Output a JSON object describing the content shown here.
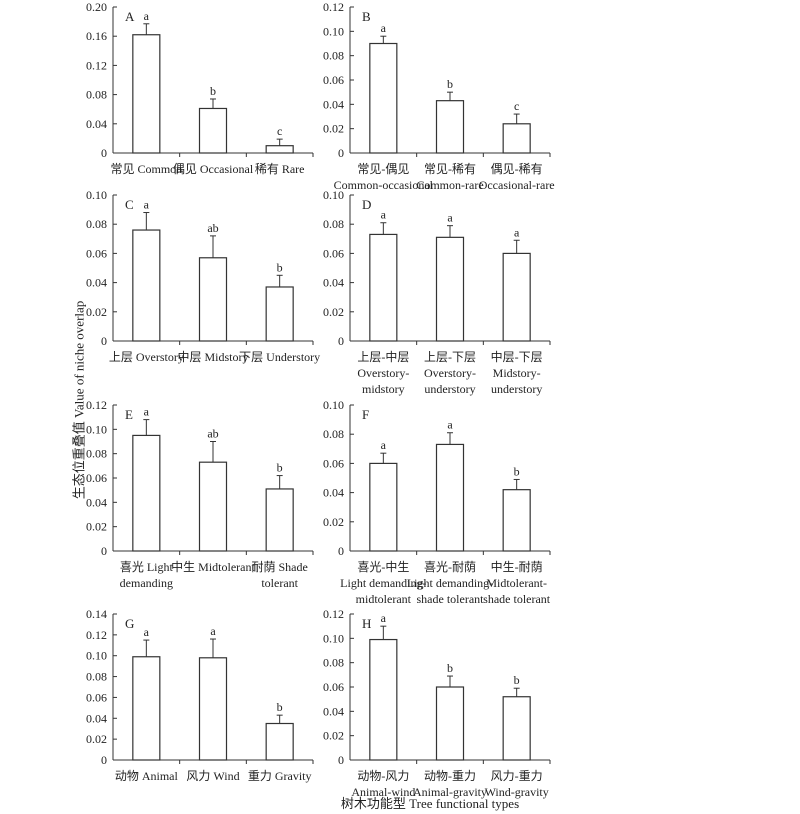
{
  "ylabel": "生态位重叠值 Value of niche overlap",
  "xlabel": "树木功能型 Tree functional types",
  "chart_data": [
    {
      "type": "bar",
      "panel": "A",
      "ylim": [
        0,
        0.2
      ],
      "ticks": [
        "0",
        "0.04",
        "0.08",
        "0.12",
        "0.16",
        "0.20"
      ],
      "categories": [
        [
          "常见 Common"
        ],
        [
          "偶见 Occasional"
        ],
        [
          "稀有 Rare"
        ]
      ],
      "values": [
        0.162,
        0.061,
        0.01
      ],
      "errors": [
        0.015,
        0.013,
        0.009
      ],
      "letters": [
        "a",
        "b",
        "c"
      ]
    },
    {
      "type": "bar",
      "panel": "B",
      "ylim": [
        0,
        0.12
      ],
      "ticks": [
        "0",
        "0.02",
        "0.04",
        "0.06",
        "0.08",
        "0.10",
        "0.12"
      ],
      "categories": [
        [
          "常见-偶见",
          "Common-occasional"
        ],
        [
          "常见-稀有",
          "Common-rare"
        ],
        [
          "偶见-稀有",
          "Occasional-rare"
        ]
      ],
      "values": [
        0.09,
        0.043,
        0.024
      ],
      "errors": [
        0.006,
        0.007,
        0.008
      ],
      "letters": [
        "a",
        "b",
        "c"
      ]
    },
    {
      "type": "bar",
      "panel": "C",
      "ylim": [
        0,
        0.1
      ],
      "ticks": [
        "0",
        "0.02",
        "0.04",
        "0.06",
        "0.08",
        "0.10"
      ],
      "categories": [
        [
          "上层 Overstory"
        ],
        [
          "中层 Midstory"
        ],
        [
          "下层 Understory"
        ]
      ],
      "values": [
        0.076,
        0.057,
        0.037
      ],
      "errors": [
        0.012,
        0.015,
        0.008
      ],
      "letters": [
        "a",
        "ab",
        "b"
      ]
    },
    {
      "type": "bar",
      "panel": "D",
      "ylim": [
        0,
        0.1
      ],
      "ticks": [
        "0",
        "0.02",
        "0.04",
        "0.06",
        "0.08",
        "0.10"
      ],
      "categories": [
        [
          "上层-中层",
          "Overstory-",
          "midstory"
        ],
        [
          "上层-下层",
          "Overstory-",
          "understory"
        ],
        [
          "中层-下层",
          "Midstory-",
          "understory"
        ]
      ],
      "values": [
        0.073,
        0.071,
        0.06
      ],
      "errors": [
        0.008,
        0.008,
        0.009
      ],
      "letters": [
        "a",
        "a",
        "a"
      ]
    },
    {
      "type": "bar",
      "panel": "E",
      "ylim": [
        0,
        0.12
      ],
      "ticks": [
        "0",
        "0.02",
        "0.04",
        "0.06",
        "0.08",
        "0.10",
        "0.12"
      ],
      "categories": [
        [
          "喜光 Light",
          "demanding"
        ],
        [
          "中生 Midtolerant"
        ],
        [
          "耐荫 Shade",
          "tolerant"
        ]
      ],
      "values": [
        0.095,
        0.073,
        0.051
      ],
      "errors": [
        0.013,
        0.017,
        0.011
      ],
      "letters": [
        "a",
        "ab",
        "b"
      ]
    },
    {
      "type": "bar",
      "panel": "F",
      "ylim": [
        0,
        0.1
      ],
      "ticks": [
        "0",
        "0.02",
        "0.04",
        "0.06",
        "0.08",
        "0.10"
      ],
      "categories": [
        [
          "喜光-中生",
          "Light demanding-",
          "midtolerant"
        ],
        [
          "喜光-耐荫",
          "Light demanding-",
          "shade tolerant"
        ],
        [
          "中生-耐荫",
          "Midtolerant-",
          "shade tolerant"
        ]
      ],
      "values": [
        0.06,
        0.073,
        0.042
      ],
      "errors": [
        0.007,
        0.008,
        0.007
      ],
      "letters": [
        "a",
        "a",
        "b"
      ]
    },
    {
      "type": "bar",
      "panel": "G",
      "ylim": [
        0,
        0.14
      ],
      "ticks": [
        "0",
        "0.02",
        "0.04",
        "0.06",
        "0.08",
        "0.10",
        "0.12",
        "0.14"
      ],
      "categories": [
        [
          "动物 Animal"
        ],
        [
          "风力 Wind"
        ],
        [
          "重力 Gravity"
        ]
      ],
      "values": [
        0.099,
        0.098,
        0.035
      ],
      "errors": [
        0.016,
        0.018,
        0.008
      ],
      "letters": [
        "a",
        "a",
        "b"
      ]
    },
    {
      "type": "bar",
      "panel": "H",
      "ylim": [
        0,
        0.12
      ],
      "ticks": [
        "0",
        "0.02",
        "0.04",
        "0.06",
        "0.08",
        "0.10",
        "0.12"
      ],
      "categories": [
        [
          "动物-风力",
          "Animal-wind"
        ],
        [
          "动物-重力",
          "Animal-gravity"
        ],
        [
          "风力-重力",
          "Wind-gravity"
        ]
      ],
      "values": [
        0.099,
        0.06,
        0.052
      ],
      "errors": [
        0.011,
        0.009,
        0.007
      ],
      "letters": [
        "a",
        "b",
        "b"
      ]
    }
  ]
}
